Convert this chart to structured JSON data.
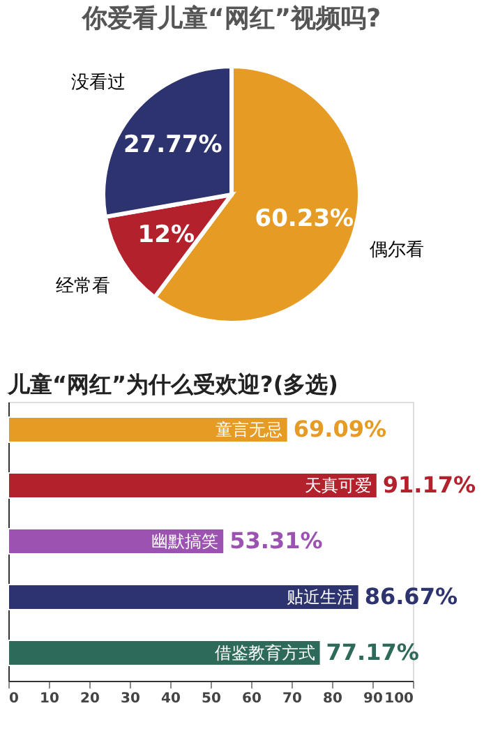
{
  "chart_data": [
    {
      "type": "pie",
      "title": "你爱看儿童“网红”视频吗?",
      "categories": [
        "偶尔看",
        "经常看",
        "没看过"
      ],
      "values": [
        60.23,
        12,
        27.77
      ],
      "colors": [
        "#e69b24",
        "#b3222c",
        "#2c336e"
      ],
      "value_labels": [
        "60.23%",
        "12%",
        "27.77%"
      ]
    },
    {
      "type": "bar",
      "orientation": "horizontal",
      "title": "儿童“网红”为什么受欢迎?(多选)",
      "categories": [
        "童言无忌",
        "天真可爱",
        "幽默搞笑",
        "贴近生活",
        "借鉴教育方式"
      ],
      "values": [
        69.09,
        91.17,
        53.31,
        86.67,
        77.17
      ],
      "colors": [
        "#e69b24",
        "#b3222c",
        "#9b52b0",
        "#2c336e",
        "#2e6a5a"
      ],
      "value_labels": [
        "69.09%",
        "91.17%",
        "53.31%",
        "86.67%",
        "77.17%"
      ],
      "xlim": [
        0,
        100
      ],
      "xticks": [
        0,
        10,
        20,
        30,
        40,
        50,
        60,
        70,
        80,
        90,
        100
      ],
      "tick_labels": "x"
    }
  ]
}
